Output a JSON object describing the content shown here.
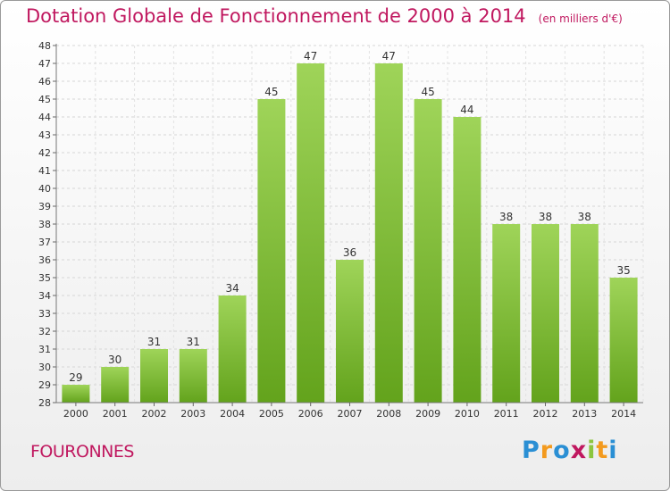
{
  "title": "Dotation Globale de Fonctionnement de 2000 à 2014",
  "unit_note": "(en milliers d'€)",
  "commune": "FOURONNES",
  "logo": {
    "letters": [
      "P",
      "r",
      "o",
      "x",
      "i",
      "t",
      "i"
    ],
    "colors": [
      "#2a8fd4",
      "#f39a1e",
      "#2a8fd4",
      "#c0185f",
      "#8cc63f",
      "#f39a1e",
      "#2a8fd4"
    ]
  },
  "colors": {
    "accent": "#c0185f",
    "bar_top": "#9fd459",
    "bar_bottom": "#63a31c"
  },
  "chart_data": {
    "type": "bar",
    "title": "Dotation Globale de Fonctionnement de 2000 à 2014",
    "subtitle": "(en milliers d'€)",
    "categories": [
      "2000",
      "2001",
      "2002",
      "2003",
      "2004",
      "2005",
      "2006",
      "2007",
      "2008",
      "2009",
      "2010",
      "2011",
      "2012",
      "2013",
      "2014"
    ],
    "values": [
      29,
      30,
      31,
      31,
      34,
      45,
      47,
      36,
      47,
      45,
      44,
      38,
      38,
      38,
      35
    ],
    "ylim": [
      28,
      48
    ],
    "yticks": [
      28,
      29,
      30,
      31,
      32,
      33,
      34,
      35,
      36,
      37,
      38,
      39,
      40,
      41,
      42,
      43,
      44,
      45,
      46,
      47,
      48
    ],
    "grid": true,
    "xlabel": "",
    "ylabel": ""
  }
}
